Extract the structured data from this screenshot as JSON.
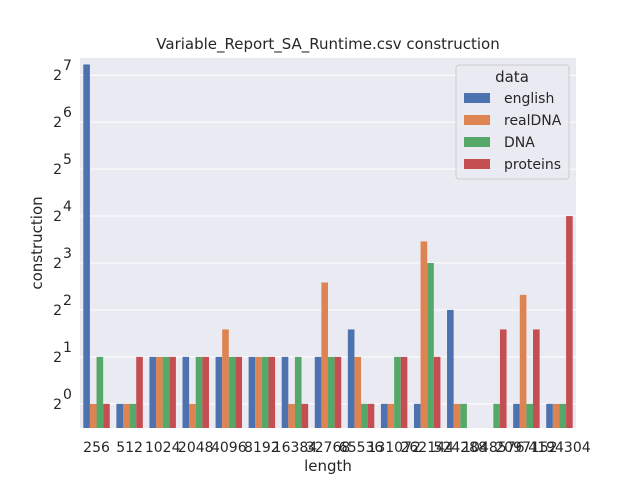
{
  "chart_data": {
    "type": "bar",
    "title": "Variable_Report_SA_Runtime.csv construction",
    "xlabel": "length",
    "ylabel": "construction",
    "yscale": "log2",
    "ylim": [
      0.7,
      165
    ],
    "yticks": [
      {
        "value": 1,
        "base": "2",
        "exp": "0"
      },
      {
        "value": 2,
        "base": "2",
        "exp": "1"
      },
      {
        "value": 4,
        "base": "2",
        "exp": "2"
      },
      {
        "value": 8,
        "base": "2",
        "exp": "3"
      },
      {
        "value": 16,
        "base": "2",
        "exp": "4"
      },
      {
        "value": 32,
        "base": "2",
        "exp": "5"
      },
      {
        "value": 64,
        "base": "2",
        "exp": "6"
      },
      {
        "value": 128,
        "base": "2",
        "exp": "7"
      }
    ],
    "grid": true,
    "legend_position": "top-right",
    "legend_title": "data",
    "categories": [
      "256",
      "512",
      "1024",
      "2048",
      "4096",
      "8192",
      "16384",
      "32768",
      "65536",
      "131072",
      "262144",
      "524288",
      "1048576",
      "2097152",
      "4194304"
    ],
    "series": [
      {
        "name": "english",
        "color": "#4c72b0",
        "values": [
          150,
          1,
          2,
          2,
          2,
          2,
          2,
          2,
          3,
          1,
          1,
          4,
          null,
          1,
          1
        ]
      },
      {
        "name": "realDNA",
        "color": "#dd8452",
        "values": [
          1,
          1,
          2,
          1,
          3,
          2,
          1,
          6,
          2,
          1,
          11,
          1,
          null,
          5,
          1
        ]
      },
      {
        "name": "DNA",
        "color": "#55a868",
        "values": [
          2,
          1,
          2,
          2,
          2,
          2,
          2,
          2,
          1,
          2,
          8,
          1,
          1,
          1,
          1
        ]
      },
      {
        "name": "proteins",
        "color": "#c44e52",
        "values": [
          1,
          2,
          2,
          2,
          2,
          2,
          1,
          2,
          1,
          2,
          2,
          null,
          3,
          3,
          16
        ]
      }
    ]
  }
}
